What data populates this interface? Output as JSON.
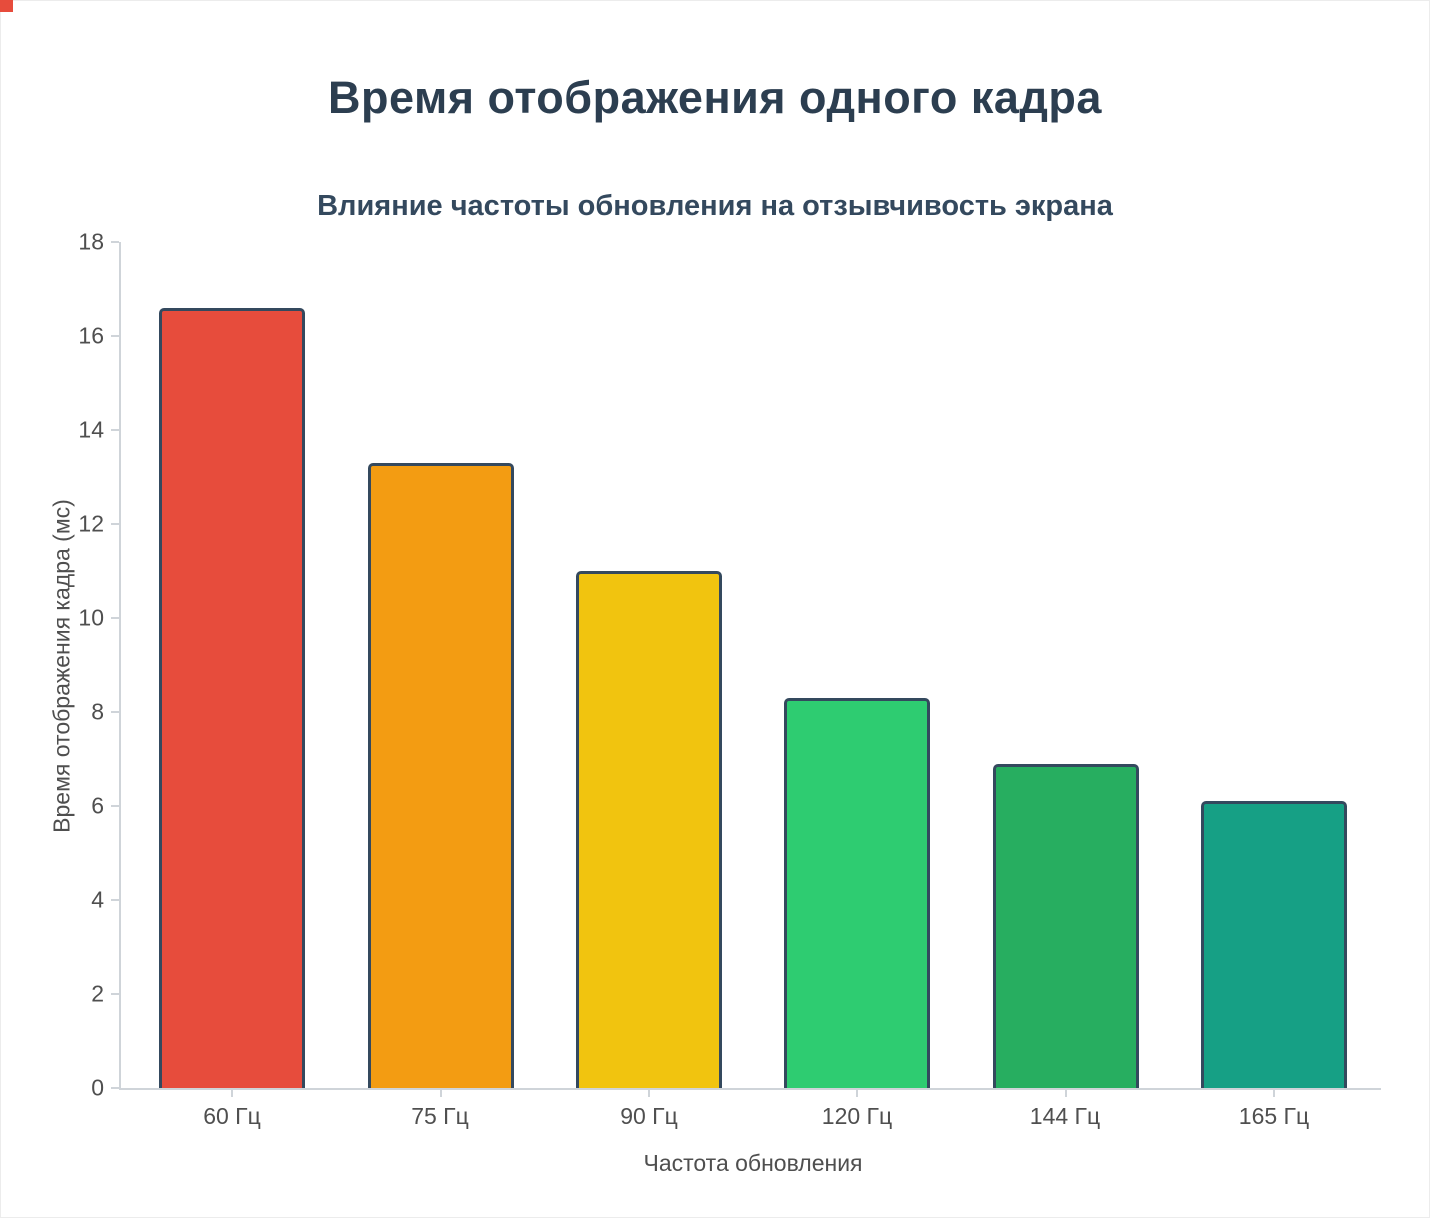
{
  "chart_data": {
    "type": "bar",
    "title": "Время отображения одного кадра",
    "subtitle": "Влияние частоты обновления на отзывчивость экрана",
    "categories": [
      "60 Гц",
      "75 Гц",
      "90 Гц",
      "120 Гц",
      "144 Гц",
      "165 Гц"
    ],
    "values": [
      16.6,
      13.3,
      11.0,
      8.3,
      6.9,
      6.1
    ],
    "xlabel": "Частота обновления",
    "ylabel": "Время отображения кадра (мс)",
    "ylim": [
      0,
      18
    ],
    "yticks": [
      0,
      2,
      4,
      6,
      8,
      10,
      12,
      14,
      16,
      18
    ],
    "grid": false,
    "legend_position": "none",
    "bar_colors": [
      "#e74c3c",
      "#f39c12",
      "#f1c40f",
      "#2ecc71",
      "#27ae60",
      "#16a085"
    ],
    "bar_border_color": "#34495e",
    "text_colors": {
      "title": "#2c3e50",
      "subtitle": "#34495e",
      "axis": "#4f4f4f",
      "axis_line": "#cfd4d9"
    }
  }
}
